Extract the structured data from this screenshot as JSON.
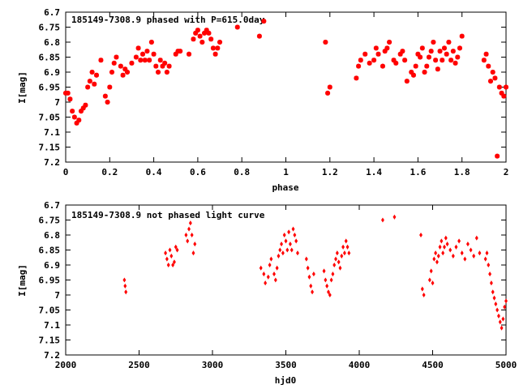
{
  "colors": {
    "points": "#ff0000",
    "axes": "#000000",
    "background": "#ffffff"
  },
  "chart_data": [
    {
      "type": "scatter",
      "title": "185149-7308.9 phased with P=615.0day",
      "xlabel": "phase",
      "ylabel": "I[mag]",
      "xlim": [
        0,
        2
      ],
      "ylim": [
        6.7,
        7.2
      ],
      "y_inverted": true,
      "marker": "star",
      "grid": false,
      "xticks": [
        "0",
        "0.2",
        "0.4",
        "0.6",
        "0.8",
        "1",
        "1.2",
        "1.4",
        "1.6",
        "1.8",
        "2"
      ],
      "yticks": [
        "6.7",
        "6.75",
        "6.8",
        "6.85",
        "6.9",
        "6.95",
        "7",
        "7.05",
        "7.1",
        "7.15",
        "7.2"
      ],
      "series": [
        {
          "x": [
            0.0,
            0.01,
            0.02,
            0.03,
            0.04,
            0.05,
            0.06,
            0.07,
            0.08,
            0.09,
            0.1,
            0.11,
            0.12,
            0.13,
            0.14,
            0.16,
            0.18,
            0.19,
            0.2,
            0.21,
            0.22,
            0.23,
            0.25,
            0.26,
            0.27,
            0.28,
            0.3,
            0.32,
            0.33,
            0.34,
            0.35,
            0.36,
            0.37,
            0.38,
            0.39,
            0.4,
            0.41,
            0.42,
            0.43,
            0.44,
            0.45,
            0.46,
            0.47,
            0.5,
            0.51,
            0.52,
            0.56,
            0.58,
            0.59,
            0.6,
            0.61,
            0.62,
            0.63,
            0.64,
            0.65,
            0.66,
            0.67,
            0.68,
            0.69,
            0.7,
            0.78,
            0.88,
            0.9,
            1.18,
            1.19,
            1.2,
            1.32,
            1.33,
            1.34,
            1.36,
            1.38,
            1.4,
            1.41,
            1.42,
            1.44,
            1.45,
            1.46,
            1.47,
            1.49,
            1.5,
            1.52,
            1.53,
            1.54,
            1.55,
            1.57,
            1.58,
            1.59,
            1.6,
            1.61,
            1.62,
            1.63,
            1.64,
            1.65,
            1.66,
            1.67,
            1.68,
            1.69,
            1.7,
            1.71,
            1.72,
            1.73,
            1.74,
            1.75,
            1.76,
            1.77,
            1.78,
            1.79,
            1.8,
            1.9,
            1.91,
            1.92,
            1.93,
            1.94,
            1.95,
            1.96,
            1.97,
            1.98,
            1.99,
            2.0
          ],
          "y": [
            6.97,
            6.97,
            6.99,
            7.03,
            7.05,
            7.07,
            7.06,
            7.03,
            7.02,
            7.01,
            6.95,
            6.93,
            6.9,
            6.94,
            6.91,
            6.86,
            6.98,
            7.0,
            6.95,
            6.9,
            6.87,
            6.85,
            6.88,
            6.91,
            6.89,
            6.9,
            6.87,
            6.85,
            6.82,
            6.86,
            6.84,
            6.86,
            6.83,
            6.86,
            6.8,
            6.84,
            6.88,
            6.9,
            6.86,
            6.88,
            6.87,
            6.9,
            6.88,
            6.84,
            6.83,
            6.83,
            6.84,
            6.79,
            6.77,
            6.76,
            6.78,
            6.8,
            6.77,
            6.76,
            6.77,
            6.79,
            6.82,
            6.84,
            6.82,
            6.8,
            6.75,
            6.78,
            6.73,
            6.8,
            6.97,
            6.95,
            6.92,
            6.88,
            6.86,
            6.84,
            6.87,
            6.86,
            6.82,
            6.84,
            6.88,
            6.83,
            6.82,
            6.8,
            6.86,
            6.87,
            6.84,
            6.83,
            6.86,
            6.93,
            6.9,
            6.91,
            6.88,
            6.84,
            6.85,
            6.82,
            6.9,
            6.88,
            6.85,
            6.83,
            6.8,
            6.86,
            6.89,
            6.83,
            6.86,
            6.82,
            6.84,
            6.8,
            6.86,
            6.83,
            6.87,
            6.85,
            6.82,
            6.78,
            6.86,
            6.84,
            6.88,
            6.93,
            6.9,
            6.92,
            7.18,
            6.95,
            6.97,
            6.98,
            6.95
          ],
          "connected": false
        }
      ]
    },
    {
      "type": "scatter",
      "title": "185149-7308.9 not phased light curve",
      "xlabel": "hjd0",
      "ylabel": "I[mag]",
      "xlim": [
        2000,
        5000
      ],
      "ylim": [
        6.7,
        7.2
      ],
      "y_inverted": true,
      "marker": "diamond",
      "grid": false,
      "xticks": [
        "2000",
        "2500",
        "3000",
        "3500",
        "4000",
        "4500",
        "5000"
      ],
      "yticks": [
        "6.7",
        "6.75",
        "6.8",
        "6.85",
        "6.9",
        "6.95",
        "7",
        "7.05",
        "7.1",
        "7.15",
        "7.2"
      ],
      "series": [
        {
          "x": [
            2400,
            2405,
            2410,
            2680,
            2690,
            2700,
            2710,
            2720,
            2730,
            2740,
            2750,
            2760,
            2820,
            2830,
            2840,
            2850,
            2860,
            2870,
            2880,
            3330,
            3350,
            3360,
            3380,
            3390,
            3400,
            3420,
            3430,
            3440,
            3450,
            3460,
            3470,
            3480,
            3490,
            3500,
            3510,
            3520,
            3530,
            3540,
            3550,
            3560,
            3570,
            3580,
            3640,
            3650,
            3660,
            3670,
            3680,
            3690,
            3760,
            3770,
            3780,
            3790,
            3800,
            3810,
            3820,
            3830,
            3840,
            3850,
            3860,
            3870,
            3880,
            3890,
            3900,
            3910,
            3920,
            3930,
            4160,
            4240,
            4420,
            4430,
            4440,
            4480,
            4490,
            4500,
            4510,
            4520,
            4530,
            4540,
            4550,
            4560,
            4570,
            4580,
            4590,
            4600,
            4620,
            4640,
            4660,
            4680,
            4700,
            4720,
            4740,
            4760,
            4780,
            4800,
            4820,
            4860,
            4870,
            4880,
            4890,
            4900,
            4910,
            4920,
            4930,
            4940,
            4950,
            4960,
            4970,
            4980,
            4990,
            5000
          ],
          "y": [
            6.95,
            6.97,
            6.99,
            6.86,
            6.88,
            6.9,
            6.85,
            6.87,
            6.9,
            6.89,
            6.84,
            6.85,
            6.8,
            6.82,
            6.78,
            6.76,
            6.8,
            6.86,
            6.83,
            6.91,
            6.93,
            6.96,
            6.94,
            6.9,
            6.88,
            6.93,
            6.95,
            6.91,
            6.87,
            6.85,
            6.83,
            6.86,
            6.8,
            6.82,
            6.85,
            6.79,
            6.83,
            6.85,
            6.78,
            6.8,
            6.82,
            6.86,
            6.88,
            6.91,
            6.94,
            6.97,
            6.99,
            6.93,
            6.92,
            6.95,
            6.97,
            6.99,
            7.0,
            6.95,
            6.93,
            6.9,
            6.88,
            6.86,
            6.89,
            6.91,
            6.87,
            6.84,
            6.86,
            6.82,
            6.84,
            6.86,
            6.75,
            6.74,
            6.8,
            6.98,
            7.0,
            6.95,
            6.92,
            6.96,
            6.88,
            6.86,
            6.89,
            6.87,
            6.84,
            6.82,
            6.86,
            6.84,
            6.81,
            6.83,
            6.85,
            6.87,
            6.84,
            6.82,
            6.86,
            6.88,
            6.83,
            6.85,
            6.87,
            6.81,
            6.86,
            6.88,
            6.86,
            6.9,
            6.93,
            6.96,
            6.99,
            7.01,
            7.03,
            7.05,
            7.07,
            7.09,
            7.11,
            7.08,
            7.04,
            7.02
          ],
          "connected": false
        }
      ]
    }
  ]
}
